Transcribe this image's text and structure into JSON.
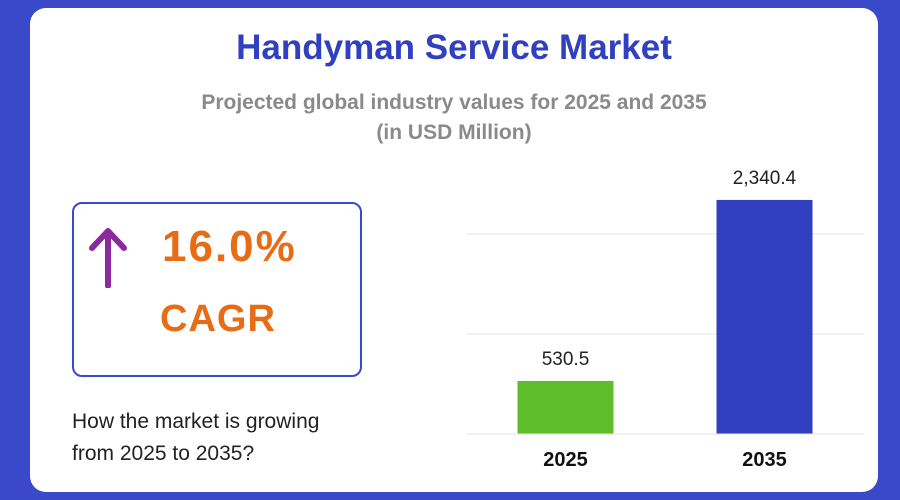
{
  "header": {
    "title": "Handyman Service Market",
    "subtitle_line1": "Projected global industry values for 2025 and 2035",
    "subtitle_line2": "(in USD Million)"
  },
  "cagr": {
    "value": "16.0%",
    "label": "CAGR",
    "arrow_icon": "arrow-up-icon",
    "arrow_color": "#8a2a9e",
    "text_color": "#e86c16"
  },
  "note": {
    "line1": "How the market is growing",
    "line2": "from 2025 to 2035?"
  },
  "chart_data": {
    "type": "bar",
    "categories": [
      "2025",
      "2035"
    ],
    "values": [
      530.5,
      2340.4
    ],
    "value_labels": [
      "530.5",
      "2,340.4"
    ],
    "colors": [
      "#5ebd2b",
      "#3040bf"
    ],
    "ylim": [
      0,
      2500
    ],
    "grid": true,
    "title": "",
    "xlabel": "",
    "ylabel": ""
  }
}
